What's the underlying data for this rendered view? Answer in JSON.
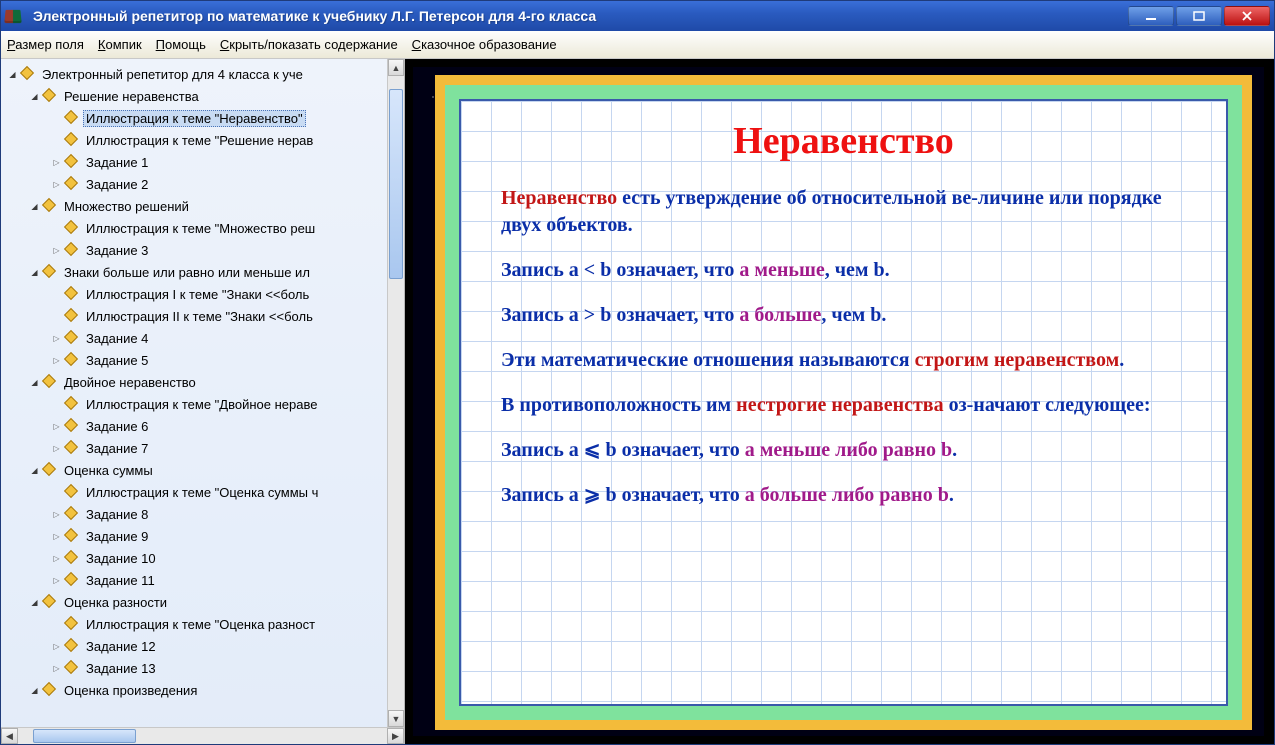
{
  "window": {
    "title": "Электронный репетитор по математике к учебнику Л.Г. Петерсон для 4-го класса"
  },
  "menu": {
    "items": [
      {
        "pre": "Р",
        "rest": "азмер поля"
      },
      {
        "pre": "К",
        "rest": "омпик"
      },
      {
        "pre": "П",
        "rest": "омощь"
      },
      {
        "pre": "С",
        "rest": "крыть/показать содержание"
      },
      {
        "pre": "С",
        "rest": "казочное образование"
      }
    ]
  },
  "tree": [
    {
      "indent": 0,
      "exp": "▾",
      "label": "Электронный репетитор для 4 класса к уче"
    },
    {
      "indent": 1,
      "exp": "▾",
      "label": "Решение неравенства"
    },
    {
      "indent": 2,
      "exp": "",
      "label": "Иллюстрация к теме \"Неравенство\"",
      "selected": true
    },
    {
      "indent": 2,
      "exp": "",
      "label": "Иллюстрация к теме \"Решение нерав"
    },
    {
      "indent": 2,
      "exp": "▸",
      "label": "Задание 1"
    },
    {
      "indent": 2,
      "exp": "▸",
      "label": "Задание 2"
    },
    {
      "indent": 1,
      "exp": "▾",
      "label": "Множество решений"
    },
    {
      "indent": 2,
      "exp": "",
      "label": "Иллюстрация к теме \"Множество реш"
    },
    {
      "indent": 2,
      "exp": "▸",
      "label": "Задание 3"
    },
    {
      "indent": 1,
      "exp": "▾",
      "label": "Знаки больше или равно или меньше ил"
    },
    {
      "indent": 2,
      "exp": "",
      "label": "Иллюстрация I к теме \"Знаки <<боль"
    },
    {
      "indent": 2,
      "exp": "",
      "label": "Иллюстрация II к теме \"Знаки <<боль"
    },
    {
      "indent": 2,
      "exp": "▸",
      "label": "Задание 4"
    },
    {
      "indent": 2,
      "exp": "▸",
      "label": "Задание 5"
    },
    {
      "indent": 1,
      "exp": "▾",
      "label": "Двойное неравенство"
    },
    {
      "indent": 2,
      "exp": "",
      "label": "Иллюстрация к теме \"Двойное нераве"
    },
    {
      "indent": 2,
      "exp": "▸",
      "label": "Задание 6"
    },
    {
      "indent": 2,
      "exp": "▸",
      "label": "Задание 7"
    },
    {
      "indent": 1,
      "exp": "▾",
      "label": "Оценка суммы"
    },
    {
      "indent": 2,
      "exp": "",
      "label": "Иллюстрация к теме \"Оценка суммы ч"
    },
    {
      "indent": 2,
      "exp": "▸",
      "label": "Задание 8"
    },
    {
      "indent": 2,
      "exp": "▸",
      "label": "Задание 9"
    },
    {
      "indent": 2,
      "exp": "▸",
      "label": "Задание 10"
    },
    {
      "indent": 2,
      "exp": "▸",
      "label": "Задание 11"
    },
    {
      "indent": 1,
      "exp": "▾",
      "label": "Оценка разности"
    },
    {
      "indent": 2,
      "exp": "",
      "label": "Иллюстрация к теме \"Оценка разност"
    },
    {
      "indent": 2,
      "exp": "▸",
      "label": "Задание 12"
    },
    {
      "indent": 2,
      "exp": "▸",
      "label": "Задание 13"
    },
    {
      "indent": 1,
      "exp": "▾",
      "label": "Оценка произведения"
    }
  ],
  "content": {
    "title": "Неравенство",
    "p1_a": "Неравенство",
    "p1_b": " есть утверждение об относительной ве-личине или порядке двух объектов.",
    "p2_a": "Запись a < b означает, что ",
    "p2_b": "a",
    "p2_c": " меньше",
    "p2_d": ", чем b.",
    "p3_a": "Запись a > b означает, что ",
    "p3_b": "a",
    "p3_c": " больше",
    "p3_d": ", чем b.",
    "p4_a": "Эти математические отношения называются ",
    "p4_b": "строгим неравенством",
    "p4_c": ".",
    "p5_a": "В противоположность им ",
    "p5_b": "нестрогие неравенства",
    "p5_c": " оз-начают следующее:",
    "p6_a": "Запись a ⩽ b означает, что ",
    "p6_b": "a",
    "p6_c": " меньше либо равно b",
    "p6_d": ".",
    "p7_a": "Запись a ⩾ b означает, что ",
    "p7_b": "a",
    "p7_c": " больше либо равно b",
    "p7_d": "."
  },
  "colors": {
    "titlebar_top": "#3a6fd8",
    "titlebar_bottom": "#1f4aa8",
    "frame_outer": "#f3bb3a",
    "frame_inner": "#7fe29d",
    "grid_line": "#c5d6f0",
    "grid_border": "#3a5aaa",
    "text_blue": "#0a2ea8",
    "text_red": "#c21616",
    "text_mag": "#a01a8a",
    "title_red": "#e11"
  },
  "scroll": {
    "v_thumb_top_pct": 2,
    "v_thumb_height_pct": 30,
    "h_thumb_left_pct": 4,
    "h_thumb_width_pct": 28
  }
}
